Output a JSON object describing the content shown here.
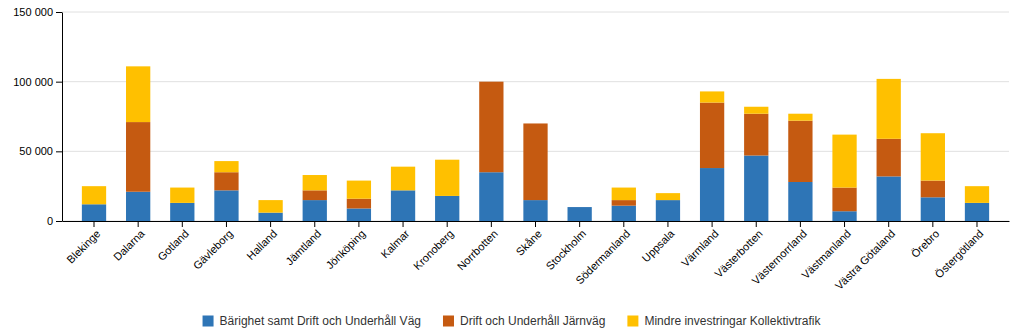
{
  "chart_data": {
    "type": "bar",
    "stacked": true,
    "categories": [
      "Blekinge",
      "Dalarna",
      "Gotland",
      "Gävleborg",
      "Halland",
      "Jämtland",
      "Jönköping",
      "Kalmar",
      "Kronoberg",
      "Norrbotten",
      "Skåne",
      "Stockholm",
      "Södermanland",
      "Uppsala",
      "Värmland",
      "Västerbotten",
      "Västernorrland",
      "Västmanland",
      "Västra Götaland",
      "Örebro",
      "Östergötland"
    ],
    "series": [
      {
        "name": "Bärighet samt Drift och Underhåll Väg",
        "color": "#2E75B6",
        "values": [
          12000,
          21000,
          13000,
          22000,
          6000,
          15000,
          9000,
          22000,
          18000,
          35000,
          15000,
          10000,
          11000,
          15000,
          38000,
          47000,
          28000,
          7000,
          32000,
          17000,
          13000
        ]
      },
      {
        "name": "Drift och Underhåll Järnväg",
        "color": "#C55A11",
        "values": [
          0,
          50000,
          0,
          13000,
          0,
          7000,
          7000,
          0,
          0,
          65000,
          55000,
          0,
          4000,
          0,
          47000,
          30000,
          44000,
          17000,
          27000,
          12000,
          0
        ]
      },
      {
        "name": "Mindre investringar Kollektivtrafik",
        "color": "#FFC000",
        "values": [
          13000,
          40000,
          11000,
          8000,
          9000,
          11000,
          13000,
          17000,
          26000,
          0,
          0,
          0,
          9000,
          5000,
          8000,
          5000,
          5000,
          38000,
          43000,
          34000,
          12000
        ]
      }
    ],
    "ylim": [
      0,
      150000
    ],
    "yticks": [
      0,
      {
        "value": 50000,
        "label": "50 000"
      },
      {
        "value": 100000,
        "label": "100 000"
      },
      {
        "value": 150000,
        "label": "150 000"
      }
    ],
    "grid": true,
    "legend": "bottom"
  }
}
